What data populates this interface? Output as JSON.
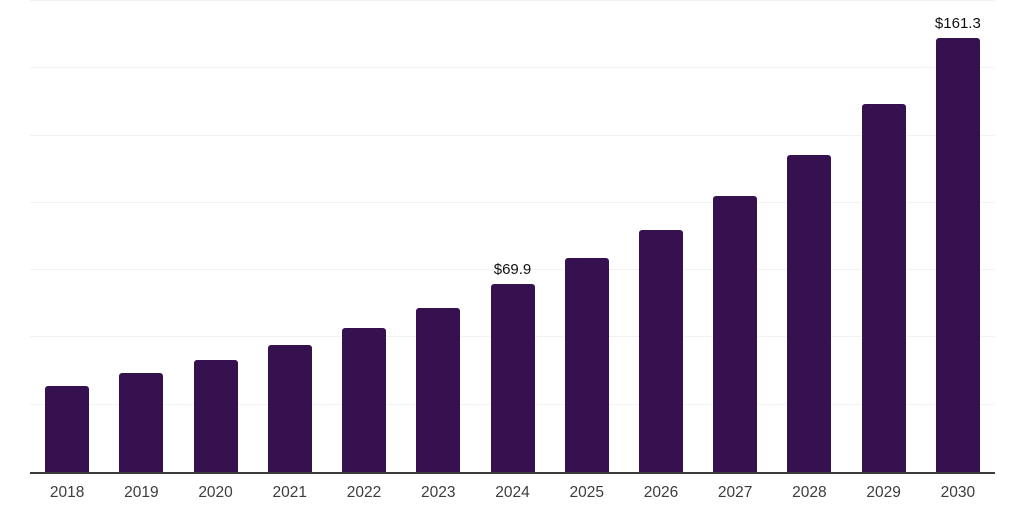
{
  "chart_data": {
    "type": "bar",
    "title": "",
    "xlabel": "",
    "ylabel": "",
    "categories": [
      "2018",
      "2019",
      "2020",
      "2021",
      "2022",
      "2023",
      "2024",
      "2025",
      "2026",
      "2027",
      "2028",
      "2029",
      "2030"
    ],
    "values": [
      32.0,
      36.8,
      41.6,
      47.2,
      53.5,
      60.9,
      69.9,
      79.5,
      89.9,
      102.5,
      117.8,
      136.7,
      161.3
    ],
    "bar_labels": [
      "",
      "",
      "",
      "",
      "",
      "",
      "$69.9",
      "",
      "",
      "",
      "",
      "",
      "$161.3"
    ],
    "ylim": [
      0,
      175
    ],
    "gridline_values": [
      25,
      50,
      75,
      100,
      125,
      150,
      175
    ],
    "y_axis_tick_labels_visible": false,
    "grid": "horizontal",
    "legend": "none",
    "colors": {
      "bar": "#351150",
      "gridline": "#f2f2f2",
      "axis_line": "#3b3b3b",
      "tick_label": "#3c3c3c",
      "data_label": "#111111",
      "background": "#ffffff"
    }
  }
}
